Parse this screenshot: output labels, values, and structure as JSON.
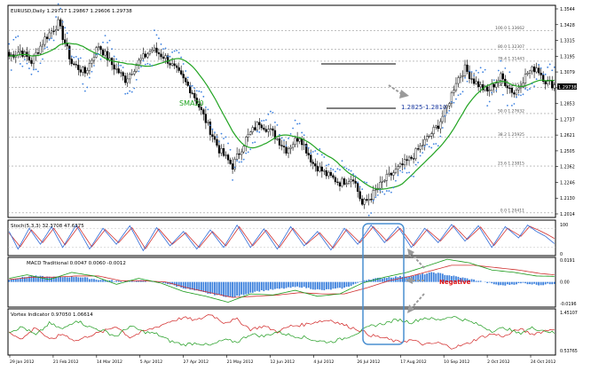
{
  "price_panel": {
    "header": "EURUSD,Daily  1.29717 1.29867 1.29606 1.29738",
    "current_price": "1.29738",
    "y_range": [
      1.2014,
      1.3544
    ],
    "right_ticks": [
      "1.3544",
      "1.3428",
      "1.3315",
      "1.3195",
      "1.3079",
      "1.2967",
      "1.2853",
      "1.2737",
      "1.2621",
      "1.2505",
      "1.2362",
      "1.2246",
      "1.2130",
      "1.2014"
    ],
    "fib_levels": [
      {
        "label": "100.0 1.33662",
        "value": 1.33662
      },
      {
        "label": "80.0 1.32307",
        "value": 1.32307
      },
      {
        "label": "76.4 1.31443",
        "value": 1.31443
      },
      {
        "label": "61.8 1.29536",
        "value": 1.29536
      },
      {
        "label": "50.0 1.27632",
        "value": 1.27632
      },
      {
        "label": "38.2 1.25925",
        "value": 1.25925
      },
      {
        "label": "23.6 1.23815",
        "value": 1.23815
      },
      {
        "label": "0.0 1.20411",
        "value": 1.20411
      }
    ],
    "sma_label": "SMA20",
    "range_label": "1.2825-1.2810",
    "channel": {
      "top": 1.316,
      "bottom": 1.282
    }
  },
  "x_axis": {
    "tick_labels": [
      "29 Jan 2012",
      "21 Feb 2012",
      "14 Mar 2012",
      "5 Apr 2012",
      "27 Apr 2012",
      "21 May 2012",
      "12 Jun 2012",
      "4 Jul 2012",
      "26 Jul 2012",
      "17 Aug 2012",
      "10 Sep 2012",
      "2 Oct 2012",
      "24 Oct 2012"
    ]
  },
  "stoch_panel": {
    "header": "Stoch(5,3,3) 32.3708 47.6375",
    "ticks": [
      "100",
      "0"
    ],
    "main_color": "#2f6bd8",
    "signal_color": "#d03030"
  },
  "macd_panel": {
    "header": "MACD Traditional 0.0047 0.0060 -0.0012",
    "ticks": [
      "0.0191",
      "0.00",
      "-0.0196"
    ],
    "annotation": "Negative",
    "hist_color": "#3a7fdc"
  },
  "vortex_panel": {
    "header": "Vortex Indicator 0.97050 1.06614",
    "ticks": [
      "1.45107",
      "0.53765"
    ],
    "vi_plus_color": "#1a9a1a",
    "vi_minus_color": "#d02020"
  },
  "colors": {
    "candle": "#000000",
    "sma": "#22a422",
    "psar": "#3e82e0",
    "highlight_box": "#4a8fd0",
    "arrow": "#9a9a9a",
    "negative_text": "#e01010",
    "range_text": "#1a3aa0"
  },
  "chart_data": {
    "type": "candlestick",
    "symbol": "EURUSD",
    "timeframe": "Daily",
    "ylim": [
      1.2014,
      1.3544
    ],
    "x": [
      "29 Jan 2012",
      "21 Feb 2012",
      "14 Mar 2012",
      "5 Apr 2012",
      "27 Apr 2012",
      "21 May 2012",
      "12 Jun 2012",
      "4 Jul 2012",
      "26 Jul 2012",
      "17 Aug 2012",
      "10 Sep 2012",
      "2 Oct 2012",
      "24 Oct 2012"
    ],
    "series": [
      {
        "name": "SMA20",
        "values": [
          1.305,
          1.318,
          1.312,
          1.315,
          1.318,
          1.29,
          1.256,
          1.262,
          1.222,
          1.24,
          1.278,
          1.293,
          1.292
        ]
      }
    ],
    "candles": {
      "anchors": [
        [
          0,
          1.318
        ],
        [
          5,
          1.322
        ],
        [
          10,
          1.314
        ],
        [
          16,
          1.331
        ],
        [
          22,
          1.342
        ],
        [
          28,
          1.313
        ],
        [
          34,
          1.306
        ],
        [
          40,
          1.326
        ],
        [
          46,
          1.312
        ],
        [
          52,
          1.301
        ],
        [
          58,
          1.314
        ],
        [
          64,
          1.323
        ],
        [
          70,
          1.317
        ],
        [
          76,
          1.305
        ],
        [
          82,
          1.292
        ],
        [
          88,
          1.271
        ],
        [
          94,
          1.25
        ],
        [
          100,
          1.238
        ],
        [
          106,
          1.258
        ],
        [
          112,
          1.27
        ],
        [
          118,
          1.262
        ],
        [
          124,
          1.25
        ],
        [
          130,
          1.26
        ],
        [
          136,
          1.24
        ],
        [
          142,
          1.232
        ],
        [
          148,
          1.226
        ],
        [
          154,
          1.23
        ],
        [
          158,
          1.21
        ],
        [
          162,
          1.216
        ],
        [
          168,
          1.228
        ],
        [
          174,
          1.236
        ],
        [
          180,
          1.244
        ],
        [
          186,
          1.256
        ],
        [
          192,
          1.268
        ],
        [
          196,
          1.281
        ],
        [
          200,
          1.3
        ],
        [
          204,
          1.309
        ],
        [
          208,
          1.3
        ],
        [
          214,
          1.292
        ],
        [
          220,
          1.303
        ],
        [
          226,
          1.291
        ],
        [
          232,
          1.306
        ],
        [
          236,
          1.31
        ],
        [
          240,
          1.3
        ],
        [
          244,
          1.297
        ]
      ]
    },
    "stochastic": {
      "main_anchors": [
        [
          0,
          70
        ],
        [
          4,
          15
        ],
        [
          9,
          80
        ],
        [
          14,
          30
        ],
        [
          19,
          85
        ],
        [
          24,
          20
        ],
        [
          30,
          90
        ],
        [
          36,
          15
        ],
        [
          42,
          80
        ],
        [
          48,
          30
        ],
        [
          54,
          88
        ],
        [
          60,
          10
        ],
        [
          66,
          82
        ],
        [
          72,
          25
        ],
        [
          78,
          70
        ],
        [
          84,
          15
        ],
        [
          90,
          75
        ],
        [
          96,
          20
        ],
        [
          102,
          90
        ],
        [
          108,
          20
        ],
        [
          114,
          78
        ],
        [
          120,
          15
        ],
        [
          126,
          85
        ],
        [
          132,
          25
        ],
        [
          138,
          70
        ],
        [
          144,
          12
        ],
        [
          150,
          80
        ],
        [
          156,
          30
        ],
        [
          162,
          90
        ],
        [
          168,
          35
        ],
        [
          174,
          85
        ],
        [
          180,
          20
        ],
        [
          186,
          80
        ],
        [
          192,
          35
        ],
        [
          198,
          92
        ],
        [
          204,
          40
        ],
        [
          210,
          88
        ],
        [
          216,
          20
        ],
        [
          222,
          85
        ],
        [
          228,
          50
        ],
        [
          232,
          90
        ],
        [
          236,
          70
        ],
        [
          240,
          55
        ],
        [
          244,
          32
        ]
      ],
      "signal_anchors": [
        [
          0,
          65
        ],
        [
          5,
          22
        ],
        [
          10,
          75
        ],
        [
          15,
          35
        ],
        [
          20,
          80
        ],
        [
          25,
          28
        ],
        [
          31,
          85
        ],
        [
          37,
          22
        ],
        [
          43,
          76
        ],
        [
          49,
          35
        ],
        [
          55,
          82
        ],
        [
          61,
          16
        ],
        [
          67,
          78
        ],
        [
          73,
          30
        ],
        [
          79,
          66
        ],
        [
          85,
          20
        ],
        [
          91,
          70
        ],
        [
          97,
          25
        ],
        [
          103,
          85
        ],
        [
          109,
          25
        ],
        [
          115,
          74
        ],
        [
          121,
          20
        ],
        [
          127,
          80
        ],
        [
          133,
          30
        ],
        [
          139,
          66
        ],
        [
          145,
          18
        ],
        [
          151,
          76
        ],
        [
          157,
          35
        ],
        [
          163,
          85
        ],
        [
          169,
          40
        ],
        [
          175,
          80
        ],
        [
          181,
          25
        ],
        [
          187,
          76
        ],
        [
          193,
          40
        ],
        [
          199,
          88
        ],
        [
          205,
          45
        ],
        [
          211,
          84
        ],
        [
          217,
          26
        ],
        [
          223,
          80
        ],
        [
          229,
          55
        ],
        [
          233,
          86
        ],
        [
          237,
          74
        ],
        [
          241,
          60
        ],
        [
          244,
          48
        ]
      ]
    },
    "macd": {
      "hist_anchors": [
        [
          0,
          0.002
        ],
        [
          10,
          0.005
        ],
        [
          20,
          0.004
        ],
        [
          30,
          0.0045
        ],
        [
          40,
          0.002
        ],
        [
          50,
          0.0005
        ],
        [
          60,
          0.001
        ],
        [
          70,
          -0.001
        ],
        [
          80,
          -0.006
        ],
        [
          90,
          -0.01
        ],
        [
          100,
          -0.013
        ],
        [
          110,
          -0.008
        ],
        [
          120,
          -0.006
        ],
        [
          130,
          -0.004
        ],
        [
          140,
          -0.007
        ],
        [
          150,
          -0.005
        ],
        [
          160,
          0.002
        ],
        [
          170,
          0.004
        ],
        [
          180,
          0.005
        ],
        [
          190,
          0.008
        ],
        [
          200,
          0.0045
        ],
        [
          210,
          0.001
        ],
        [
          220,
          -0.003
        ],
        [
          230,
          -0.001
        ],
        [
          238,
          -0.0025
        ],
        [
          244,
          -0.0012
        ]
      ],
      "macd_anchors": [
        [
          0,
          0.003
        ],
        [
          8,
          0.006
        ],
        [
          18,
          0.002
        ],
        [
          28,
          0.008
        ],
        [
          38,
          0.005
        ],
        [
          48,
          -0.002
        ],
        [
          58,
          0.003
        ],
        [
          68,
          -0.001
        ],
        [
          78,
          -0.008
        ],
        [
          88,
          -0.012
        ],
        [
          98,
          -0.017
        ],
        [
          108,
          -0.01
        ],
        [
          118,
          -0.011
        ],
        [
          128,
          -0.007
        ],
        [
          138,
          -0.012
        ],
        [
          148,
          -0.01
        ],
        [
          158,
          -0.001
        ],
        [
          168,
          0.004
        ],
        [
          178,
          0.008
        ],
        [
          188,
          0.014
        ],
        [
          196,
          0.019
        ],
        [
          206,
          0.016
        ],
        [
          216,
          0.01
        ],
        [
          226,
          0.008
        ],
        [
          236,
          0.005
        ],
        [
          244,
          0.0047
        ]
      ],
      "signal_anchors": [
        [
          0,
          0.002
        ],
        [
          10,
          0.004
        ],
        [
          20,
          0.004
        ],
        [
          30,
          0.005
        ],
        [
          40,
          0.005
        ],
        [
          50,
          0.001
        ],
        [
          60,
          0.001
        ],
        [
          70,
          0.0
        ],
        [
          80,
          -0.005
        ],
        [
          90,
          -0.009
        ],
        [
          100,
          -0.013
        ],
        [
          110,
          -0.012
        ],
        [
          120,
          -0.011
        ],
        [
          130,
          -0.009
        ],
        [
          140,
          -0.01
        ],
        [
          150,
          -0.01
        ],
        [
          160,
          -0.005
        ],
        [
          170,
          0.001
        ],
        [
          180,
          0.005
        ],
        [
          190,
          0.01
        ],
        [
          198,
          0.014
        ],
        [
          208,
          0.014
        ],
        [
          218,
          0.012
        ],
        [
          228,
          0.01
        ],
        [
          238,
          0.007
        ],
        [
          244,
          0.006
        ]
      ]
    },
    "vortex": {
      "vi_plus_anchors": [
        [
          0,
          1.0
        ],
        [
          6,
          1.1
        ],
        [
          12,
          0.92
        ],
        [
          18,
          1.18
        ],
        [
          24,
          1.05
        ],
        [
          30,
          1.25
        ],
        [
          36,
          1.1
        ],
        [
          42,
          1.02
        ],
        [
          48,
          0.9
        ],
        [
          54,
          1.12
        ],
        [
          60,
          1.0
        ],
        [
          66,
          0.95
        ],
        [
          72,
          0.8
        ],
        [
          78,
          0.72
        ],
        [
          84,
          0.76
        ],
        [
          90,
          0.7
        ],
        [
          96,
          0.82
        ],
        [
          102,
          0.78
        ],
        [
          108,
          0.95
        ],
        [
          114,
          0.9
        ],
        [
          120,
          1.0
        ],
        [
          126,
          0.92
        ],
        [
          132,
          0.88
        ],
        [
          138,
          0.8
        ],
        [
          144,
          0.78
        ],
        [
          150,
          0.86
        ],
        [
          156,
          0.98
        ],
        [
          162,
          1.12
        ],
        [
          168,
          1.18
        ],
        [
          174,
          1.26
        ],
        [
          180,
          1.2
        ],
        [
          186,
          1.3
        ],
        [
          192,
          1.25
        ],
        [
          198,
          1.33
        ],
        [
          204,
          1.25
        ],
        [
          210,
          1.15
        ],
        [
          216,
          1.02
        ],
        [
          222,
          1.08
        ],
        [
          228,
          0.96
        ],
        [
          234,
          1.08
        ],
        [
          240,
          1.02
        ],
        [
          244,
          0.97
        ]
      ],
      "vi_minus_anchors": [
        [
          0,
          0.98
        ],
        [
          6,
          0.85
        ],
        [
          12,
          1.1
        ],
        [
          18,
          0.82
        ],
        [
          24,
          0.95
        ],
        [
          30,
          0.8
        ],
        [
          36,
          0.92
        ],
        [
          42,
          1.0
        ],
        [
          48,
          1.12
        ],
        [
          54,
          0.88
        ],
        [
          60,
          1.0
        ],
        [
          66,
          1.1
        ],
        [
          72,
          1.22
        ],
        [
          78,
          1.3
        ],
        [
          84,
          1.24
        ],
        [
          90,
          1.38
        ],
        [
          96,
          1.2
        ],
        [
          102,
          1.26
        ],
        [
          108,
          1.05
        ],
        [
          114,
          1.12
        ],
        [
          120,
          1.0
        ],
        [
          126,
          1.12
        ],
        [
          132,
          1.15
        ],
        [
          138,
          1.22
        ],
        [
          144,
          1.25
        ],
        [
          150,
          1.14
        ],
        [
          156,
          1.05
        ],
        [
          162,
          0.92
        ],
        [
          168,
          0.86
        ],
        [
          174,
          0.78
        ],
        [
          180,
          0.82
        ],
        [
          186,
          0.72
        ],
        [
          192,
          0.76
        ],
        [
          198,
          0.66
        ],
        [
          204,
          0.72
        ],
        [
          210,
          0.86
        ],
        [
          216,
          0.95
        ],
        [
          222,
          0.9
        ],
        [
          228,
          1.06
        ],
        [
          234,
          0.95
        ],
        [
          240,
          1.02
        ],
        [
          244,
          1.07
        ]
      ]
    }
  }
}
